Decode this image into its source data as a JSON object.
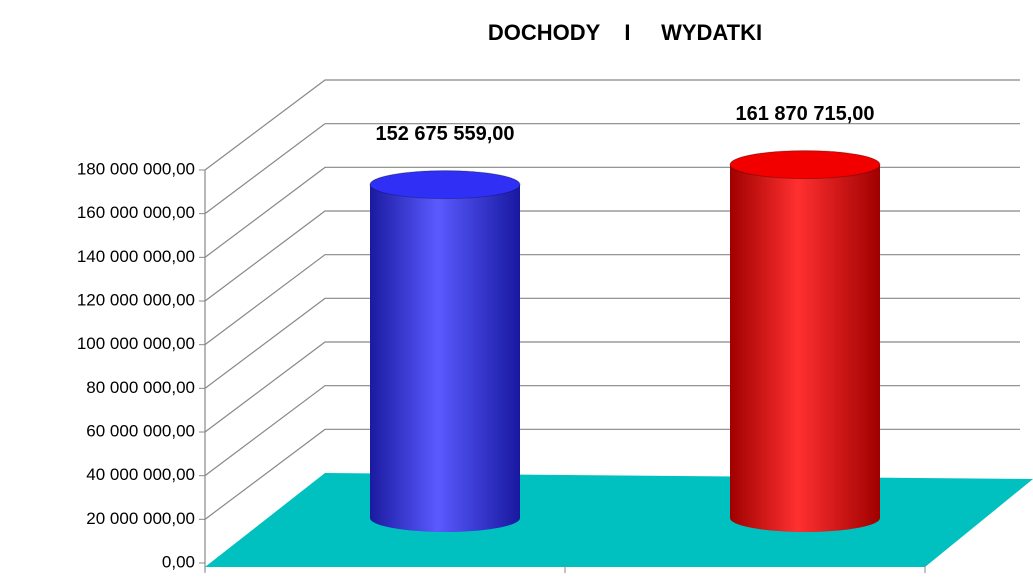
{
  "chart_data": {
    "type": "bar3d",
    "title": "DOCHODY    I     WYDATKI",
    "categories": [
      null,
      null
    ],
    "series": [
      {
        "name": null,
        "values": [
          152675559,
          161870715
        ],
        "value_labels": [
          "152 675 559,00",
          "161 870 715,00"
        ],
        "colors": [
          "#2f2ff5",
          "#f20000"
        ]
      }
    ],
    "floor_color": "#00c0c0",
    "ylim": [
      0,
      180000000
    ],
    "yticks": [
      {
        "value": 0,
        "label": "0,00"
      },
      {
        "value": 20000000,
        "label": "20 000 000,00"
      },
      {
        "value": 40000000,
        "label": "40 000 000,00"
      },
      {
        "value": 60000000,
        "label": "60 000 000,00"
      },
      {
        "value": 80000000,
        "label": "80 000 000,00"
      },
      {
        "value": 100000000,
        "label": "100 000 000,00"
      },
      {
        "value": 120000000,
        "label": "120 000 000,00"
      },
      {
        "value": 140000000,
        "label": "140 000 000,00"
      },
      {
        "value": 160000000,
        "label": "160 000 000,00"
      },
      {
        "value": 180000000,
        "label": "180 000 000,00"
      }
    ],
    "grid": true
  }
}
